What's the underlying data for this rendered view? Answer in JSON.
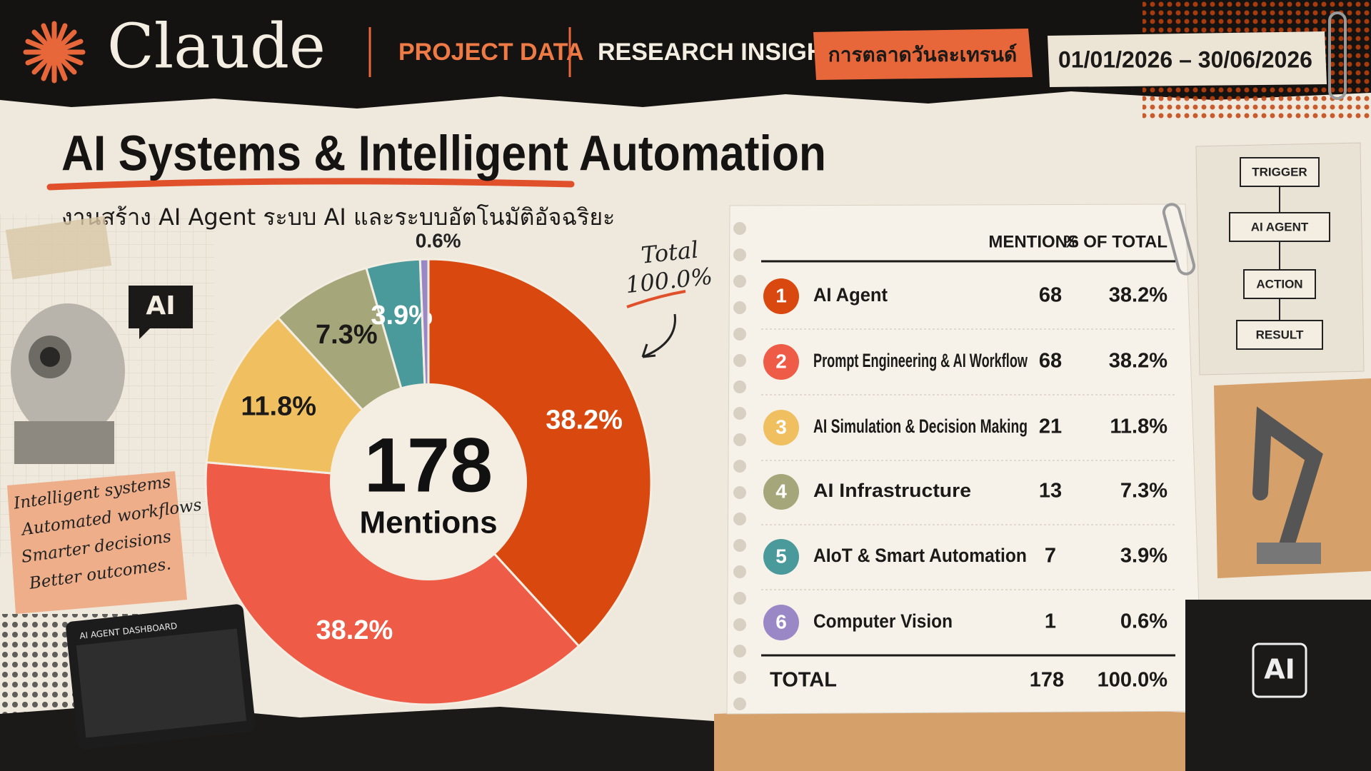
{
  "header": {
    "brand": "Claude",
    "nav": [
      "PROJECT DATA",
      "RESEARCH INSIGHT"
    ],
    "tag": "การตลาดวันละเทรนด์",
    "date_range": "01/01/2026 – 30/06/2026"
  },
  "title": "AI Systems & Intelligent Automation",
  "subtitle": "งานสร้าง AI Agent ระบบ AI และระบบอัตโนมัติอัจฉริยะ",
  "chart_data": {
    "type": "donut",
    "categories": [
      "AI Agent",
      "Prompt Engineering & AI Workflow",
      "AI Simulation & Decision Making",
      "AI Infrastructure",
      "AIoT & Smart Automation",
      "Computer Vision"
    ],
    "values": [
      38.2,
      38.2,
      11.8,
      7.3,
      3.9,
      0.6
    ],
    "value_labels": [
      "38.2%",
      "38.2%",
      "11.8%",
      "7.3%",
      "3.9%",
      "0.6%"
    ],
    "colors": [
      "#d9480f",
      "#ee5b47",
      "#f0c060",
      "#a5a77a",
      "#4b9a9b",
      "#9a88c6"
    ],
    "center_value": 178,
    "center_label": "Mentions",
    "annotation": [
      "Total",
      "100.0%"
    ]
  },
  "table": {
    "columns": [
      "MENTIONS",
      "% OF TOTAL"
    ],
    "rows": [
      {
        "rank": 1,
        "mentions": 68,
        "share": "38.2%"
      },
      {
        "rank": 2,
        "mentions": 68,
        "share": "38.2%"
      },
      {
        "rank": 3,
        "mentions": 21,
        "share": "11.8%"
      },
      {
        "rank": 4,
        "mentions": 13,
        "share": "7.3%"
      },
      {
        "rank": 5,
        "mentions": 7,
        "share": "3.9%"
      },
      {
        "rank": 6,
        "mentions": 1,
        "share": "0.6%"
      }
    ],
    "total": {
      "label": "TOTAL",
      "mentions": 178,
      "share": "100.0%"
    }
  },
  "notes": [
    "Intelligent systems",
    "Automated workflows",
    "Smarter decisions",
    "Better outcomes."
  ],
  "decor": {
    "ai_bubble": "AI",
    "dashboard": "AI AGENT DASHBOARD",
    "flow": [
      "TRIGGER",
      "AI AGENT",
      "ACTION",
      "RESULT"
    ],
    "chip": "AI"
  }
}
